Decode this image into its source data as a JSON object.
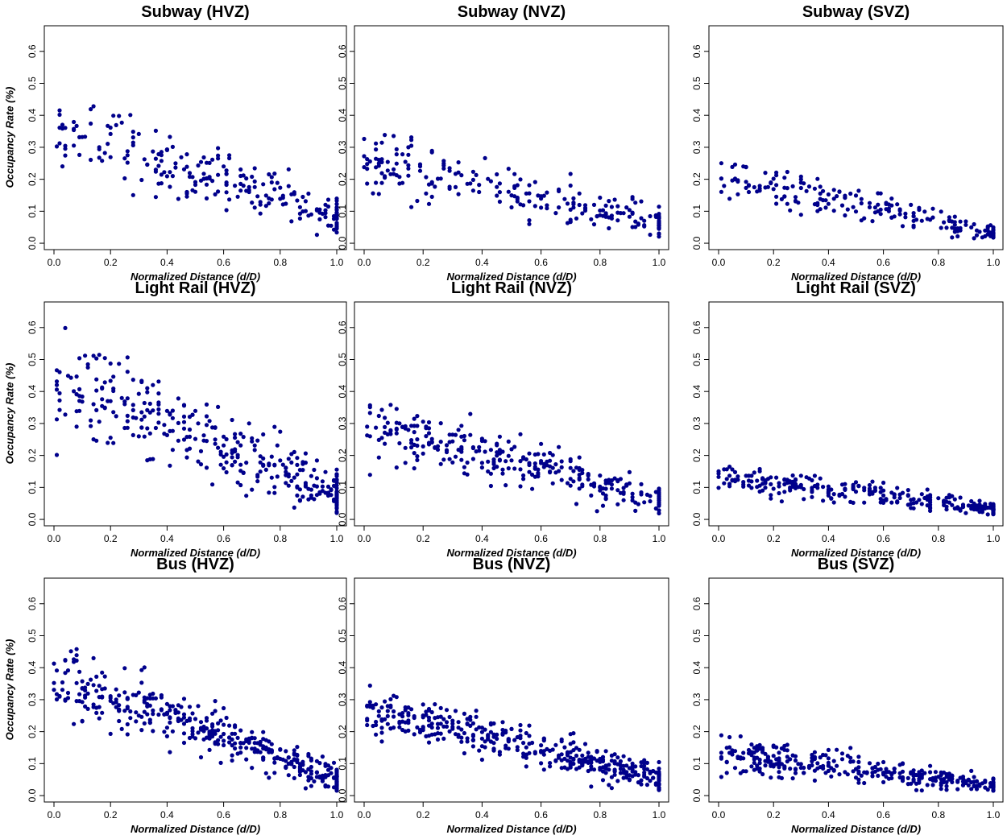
{
  "chart_data": [
    {
      "type": "scatter",
      "title": "Subway (HVZ)",
      "xlabel": "Normalized Distance (d/D)",
      "ylabel": "Occupancy Rate (%)",
      "xlim": [
        0,
        1
      ],
      "ylim": [
        0,
        0.6
      ],
      "color": "#00008B",
      "seed": 11,
      "n": 230,
      "trend": {
        "y0": 0.36,
        "y1": 0.08,
        "spread0": 0.09,
        "spread1": 0.04,
        "max": 0.51
      }
    },
    {
      "type": "scatter",
      "title": "Subway (NVZ)",
      "xlabel": "Normalized Distance (d/D)",
      "ylabel": "",
      "xlim": [
        0,
        1
      ],
      "ylim": [
        0,
        0.6
      ],
      "color": "#00008B",
      "seed": 23,
      "n": 230,
      "trend": {
        "y0": 0.26,
        "y1": 0.06,
        "spread0": 0.06,
        "spread1": 0.03,
        "max": 0.34
      }
    },
    {
      "type": "scatter",
      "title": "Subway (SVZ)",
      "xlabel": "Normalized Distance (d/D)",
      "ylabel": "",
      "xlim": [
        0,
        1
      ],
      "ylim": [
        0,
        0.6
      ],
      "color": "#00008B",
      "seed": 37,
      "n": 200,
      "trend": {
        "y0": 0.2,
        "y1": 0.03,
        "spread0": 0.05,
        "spread1": 0.02,
        "max": 0.26
      }
    },
    {
      "type": "scatter",
      "title": "Light Rail (HVZ)",
      "xlabel": "Normalized Distance (d/D)",
      "ylabel": "Occupancy Rate (%)",
      "xlim": [
        0,
        1
      ],
      "ylim": [
        0,
        0.6
      ],
      "color": "#00008B",
      "seed": 41,
      "n": 330,
      "trend": {
        "y0": 0.42,
        "y1": 0.08,
        "spread0": 0.12,
        "spread1": 0.05,
        "max": 0.67
      }
    },
    {
      "type": "scatter",
      "title": "Light Rail (NVZ)",
      "xlabel": "Normalized Distance (d/D)",
      "ylabel": "",
      "xlim": [
        0,
        1
      ],
      "ylim": [
        0,
        0.6
      ],
      "color": "#00008B",
      "seed": 53,
      "n": 300,
      "trend": {
        "y0": 0.29,
        "y1": 0.06,
        "spread0": 0.07,
        "spread1": 0.03,
        "max": 0.41
      }
    },
    {
      "type": "scatter",
      "title": "Light Rail (SVZ)",
      "xlabel": "Normalized Distance (d/D)",
      "ylabel": "",
      "xlim": [
        0,
        1
      ],
      "ylim": [
        0,
        0.6
      ],
      "color": "#00008B",
      "seed": 67,
      "n": 300,
      "trend": {
        "y0": 0.13,
        "y1": 0.03,
        "spread0": 0.03,
        "spread1": 0.015,
        "max": 0.18
      }
    },
    {
      "type": "scatter",
      "title": "Bus (HVZ)",
      "xlabel": "Normalized Distance (d/D)",
      "ylabel": "Occupancy Rate (%)",
      "xlim": [
        0,
        1
      ],
      "ylim": [
        0,
        0.6
      ],
      "color": "#00008B",
      "seed": 71,
      "n": 420,
      "trend": {
        "y0": 0.36,
        "y1": 0.05,
        "spread0": 0.07,
        "spread1": 0.03,
        "max": 0.47
      }
    },
    {
      "type": "scatter",
      "title": "Bus (NVZ)",
      "xlabel": "Normalized Distance (d/D)",
      "ylabel": "",
      "xlim": [
        0,
        1
      ],
      "ylim": [
        0,
        0.6
      ],
      "color": "#00008B",
      "seed": 83,
      "n": 420,
      "trend": {
        "y0": 0.27,
        "y1": 0.05,
        "spread0": 0.05,
        "spread1": 0.025,
        "max": 0.35
      }
    },
    {
      "type": "scatter",
      "title": "Bus (SVZ)",
      "xlabel": "Normalized Distance (d/D)",
      "ylabel": "",
      "xlim": [
        0,
        1
      ],
      "ylim": [
        0,
        0.6
      ],
      "color": "#00008B",
      "seed": 97,
      "n": 330,
      "trend": {
        "y0": 0.13,
        "y1": 0.03,
        "spread0": 0.04,
        "spread1": 0.02,
        "max": 0.23
      }
    }
  ],
  "axis": {
    "x_ticks": [
      "0.0",
      "0.2",
      "0.4",
      "0.6",
      "0.8",
      "1.0"
    ],
    "y_ticks": [
      "0.0",
      "0.1",
      "0.2",
      "0.3",
      "0.4",
      "0.5",
      "0.6"
    ]
  }
}
